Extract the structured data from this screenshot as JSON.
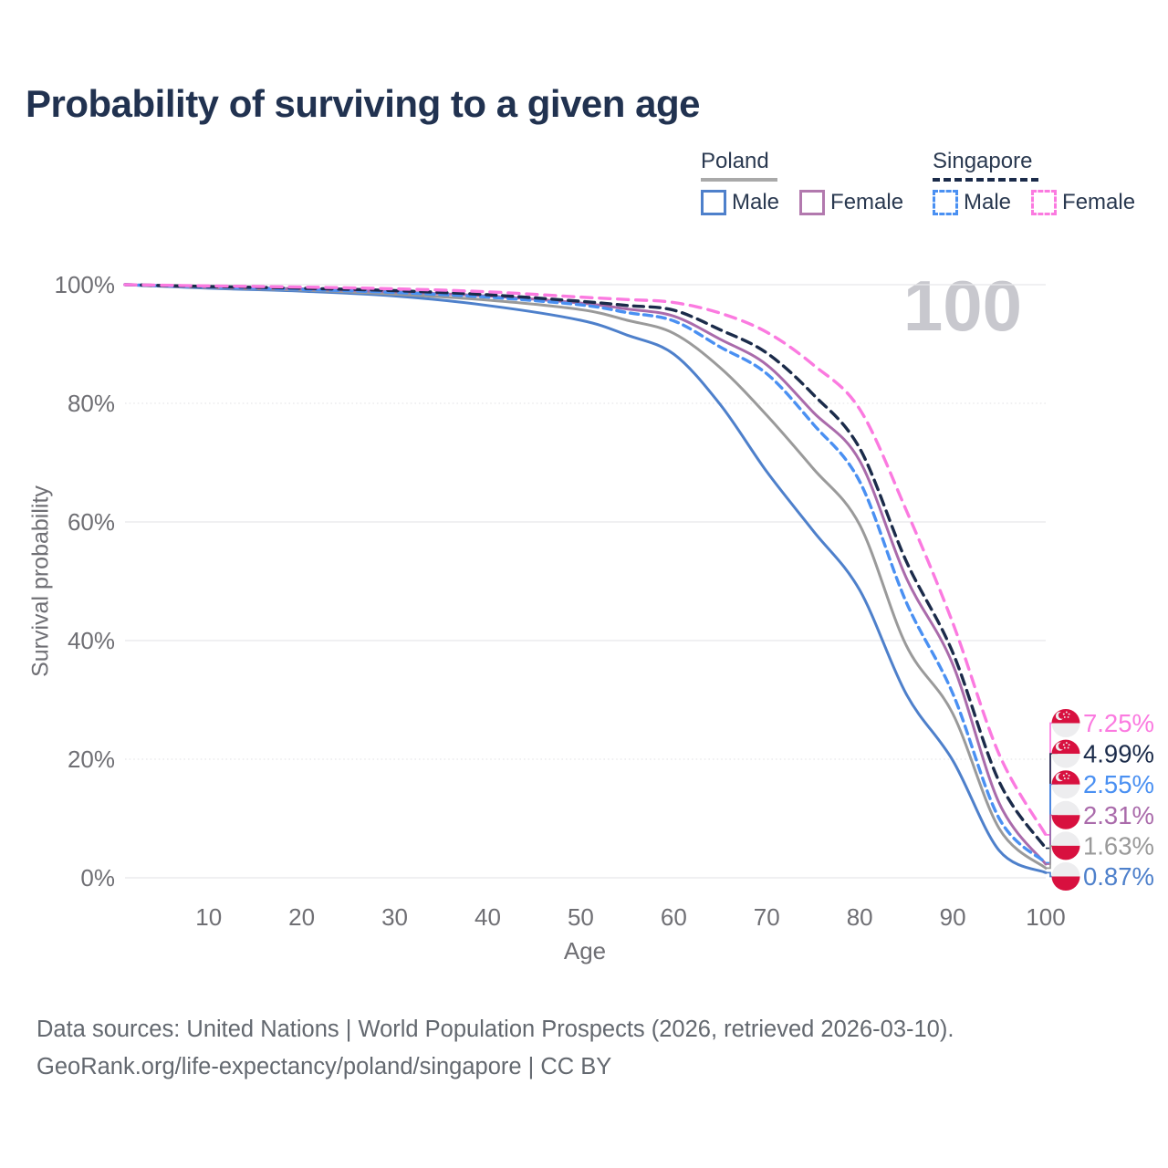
{
  "header": {
    "title": "Probability of surviving to a given age"
  },
  "legend": {
    "groups": [
      {
        "name": "Poland",
        "line_style": "solid",
        "underline_color": "#A9A9A9",
        "items": [
          {
            "label": "Male",
            "color": "#4E80CB"
          },
          {
            "label": "Female",
            "color": "#B279AE"
          }
        ]
      },
      {
        "name": "Singapore",
        "line_style": "dashed",
        "underline_color": "#1B2B4A",
        "items": [
          {
            "label": "Male",
            "color": "#4A90F2"
          },
          {
            "label": "Female",
            "color": "#FB7AE0"
          }
        ]
      }
    ]
  },
  "watermark": "100",
  "flag_colors": {
    "red": "#D8103F",
    "white": "#EDEDEF"
  },
  "chart_data": {
    "type": "line",
    "title": "Probability of surviving to a given age",
    "xlabel": "Age",
    "ylabel": "Survival probability",
    "xlim": [
      1,
      100
    ],
    "ylim": [
      0,
      100
    ],
    "grid": "horizontal",
    "legend_position": "top-right",
    "x_ticks": [
      {
        "value": 10,
        "label": "10"
      },
      {
        "value": 20,
        "label": "20"
      },
      {
        "value": 30,
        "label": "30"
      },
      {
        "value": 40,
        "label": "40"
      },
      {
        "value": 50,
        "label": "50"
      },
      {
        "value": 60,
        "label": "60"
      },
      {
        "value": 70,
        "label": "70"
      },
      {
        "value": 80,
        "label": "80"
      },
      {
        "value": 90,
        "label": "90"
      },
      {
        "value": 100,
        "label": "100"
      }
    ],
    "y_ticks": [
      {
        "value": 0,
        "label": "0%",
        "dotted": false
      },
      {
        "value": 20,
        "label": "20%",
        "dotted": true
      },
      {
        "value": 40,
        "label": "40%",
        "dotted": false
      },
      {
        "value": 60,
        "label": "60%",
        "dotted": false
      },
      {
        "value": 80,
        "label": "80%",
        "dotted": true
      },
      {
        "value": 100,
        "label": "100%",
        "dotted": false
      }
    ],
    "x": [
      1,
      10,
      20,
      30,
      40,
      50,
      55,
      60,
      65,
      70,
      75,
      80,
      85,
      90,
      95,
      100
    ],
    "series": [
      {
        "name": "Singapore Female",
        "country": "Singapore",
        "sex": "Female",
        "color": "#FB7AE0",
        "dash": "12 8",
        "width": 3.4,
        "flag": "singapore",
        "end_label": "7.25%",
        "values": [
          100,
          99.8,
          99.6,
          99.3,
          98.8,
          97.9,
          97.5,
          97.0,
          95.2,
          92.0,
          86.5,
          79.0,
          62.0,
          43.0,
          20.8,
          7.25
        ]
      },
      {
        "name": "Singapore Both sexes",
        "country": "Singapore",
        "sex": "Both sexes",
        "color": "#1B2B4A",
        "dash": "11 7",
        "width": 3.4,
        "flag": "singapore",
        "end_label": "4.99%",
        "values": [
          100,
          99.7,
          99.4,
          99.0,
          98.3,
          97.2,
          96.5,
          95.7,
          92.4,
          88.5,
          81.5,
          72.4,
          53.4,
          38.0,
          16.2,
          4.99
        ]
      },
      {
        "name": "Singapore Male",
        "country": "Singapore",
        "sex": "Male",
        "color": "#4A90F2",
        "dash": "9 6",
        "width": 3.4,
        "flag": "singapore",
        "end_label": "2.55%",
        "values": [
          100,
          99.6,
          99.2,
          98.7,
          97.9,
          96.6,
          95.3,
          93.9,
          89.5,
          85.0,
          76.5,
          66.8,
          46.5,
          31.1,
          10.0,
          2.55
        ]
      },
      {
        "name": "Poland Female",
        "country": "Poland",
        "sex": "Female",
        "color": "#AA6BAB",
        "dash": "",
        "width": 3,
        "flag": "poland",
        "end_label": "2.31%",
        "values": [
          100,
          99.6,
          99.3,
          98.8,
          98.1,
          96.9,
          95.9,
          94.7,
          90.8,
          86.5,
          78.5,
          70.3,
          50.6,
          36.0,
          12.6,
          2.31
        ]
      },
      {
        "name": "Poland Both sexes",
        "country": "Poland",
        "sex": "Both sexes",
        "color": "#9A9A9A",
        "dash": "",
        "width": 3,
        "flag": "poland",
        "end_label": "1.63%",
        "values": [
          100,
          99.5,
          99.1,
          98.4,
          97.4,
          95.8,
          94.0,
          91.8,
          86.0,
          78.0,
          69.0,
          59.5,
          39.2,
          27.7,
          8.3,
          1.63
        ]
      },
      {
        "name": "Poland Male",
        "country": "Poland",
        "sex": "Male",
        "color": "#4E80CB",
        "dash": "",
        "width": 3,
        "flag": "poland",
        "end_label": "0.87%",
        "values": [
          100,
          99.4,
          98.9,
          98.1,
          96.5,
          94.0,
          91.5,
          88.3,
          79.8,
          68.5,
          58.5,
          48.5,
          31.0,
          19.8,
          4.6,
          0.87
        ]
      }
    ],
    "annotations": {
      "age_counter": "100"
    }
  },
  "footer": {
    "line1": "Data sources: United Nations | World Population Prospects (2026, retrieved 2026-03-10).",
    "line2": "GeoRank.org/life-expectancy/poland/singapore | CC BY"
  }
}
